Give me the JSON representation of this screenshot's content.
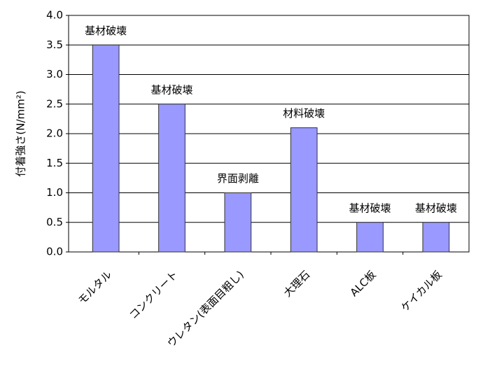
{
  "chart_data": {
    "type": "bar",
    "y_label": "付着強さ(N/mm²)",
    "categories": [
      "モルタル",
      "コンクリート",
      "ウレタン(表面目粗し)",
      "大理石",
      "ALC板",
      "ケイカル板"
    ],
    "values": [
      3.5,
      2.5,
      1.0,
      2.1,
      0.5,
      0.5
    ],
    "annotations": [
      "基材破壊",
      "基材破壊",
      "界面剥離",
      "材料破壊",
      "基材破壊",
      "基材破壊"
    ],
    "color": "#9999ff",
    "ylim": [
      0,
      4
    ],
    "yticks": [
      {
        "value": 0,
        "label": "0.0"
      },
      {
        "value": 0.5,
        "label": "0.5"
      },
      {
        "value": 1,
        "label": "1.0"
      },
      {
        "value": 1.5,
        "label": "1.5"
      },
      {
        "value": 2,
        "label": "2.0"
      },
      {
        "value": 2.5,
        "label": "2.5"
      },
      {
        "value": 3,
        "label": "3.0"
      },
      {
        "value": 3.5,
        "label": "3.5"
      },
      {
        "value": 4,
        "label": "4.0"
      }
    ],
    "grid": true
  }
}
